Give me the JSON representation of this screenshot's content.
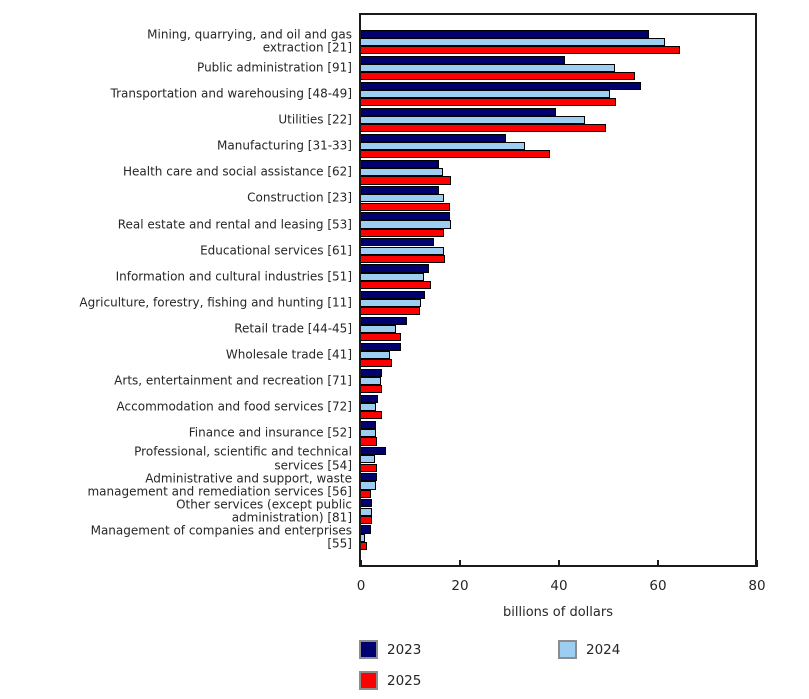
{
  "chart_data": {
    "type": "bar",
    "orientation": "horizontal",
    "title": "",
    "xlabel": "billions of dollars",
    "xlim": [
      0,
      80
    ],
    "xticks": [
      0,
      20,
      40,
      60,
      80
    ],
    "grid": false,
    "legend_position": "bottom",
    "categories": [
      "Mining, quarrying, and oil and gas\nextraction [21]",
      "Public administration [91]",
      "Transportation and warehousing [48-49]",
      "Utilities [22]",
      "Manufacturing [31-33]",
      "Health care and social assistance [62]",
      "Construction [23]",
      "Real estate and rental and leasing [53]",
      "Educational services [61]",
      "Information and cultural industries [51]",
      "Agriculture, forestry, fishing and hunting [11]",
      "Retail trade [44-45]",
      "Wholesale trade [41]",
      "Arts, entertainment and recreation [71]",
      "Accommodation and food services [72]",
      "Finance and insurance [52]",
      "Professional, scientific and technical\nservices [54]",
      "Administrative and support, waste\nmanagement and remediation services [56]",
      "Other services (except public\nadministration) [81]",
      "Management of companies and enterprises\n[55]"
    ],
    "series": [
      {
        "name": "2023",
        "color": "#00006e",
        "values": [
          58.2,
          41.3,
          56.5,
          39.4,
          29.2,
          15.8,
          15.8,
          18.0,
          14.7,
          13.7,
          12.9,
          9.2,
          8.0,
          4.2,
          3.4,
          3.0,
          5.1,
          3.3,
          2.2,
          2.1
        ]
      },
      {
        "name": "2024",
        "color": "#9ecdf2",
        "values": [
          61.5,
          51.4,
          50.4,
          45.3,
          33.2,
          16.6,
          16.8,
          18.1,
          16.8,
          12.8,
          12.2,
          7.1,
          5.9,
          4.0,
          3.1,
          3.1,
          2.8,
          3.1,
          2.2,
          0.8
        ]
      },
      {
        "name": "2025",
        "color": "#ff0000",
        "values": [
          64.5,
          55.4,
          51.5,
          49.5,
          38.2,
          18.1,
          18.0,
          16.8,
          16.9,
          14.1,
          12.0,
          8.1,
          6.2,
          4.2,
          4.2,
          3.2,
          3.2,
          2.0,
          2.2,
          1.2
        ]
      }
    ]
  }
}
